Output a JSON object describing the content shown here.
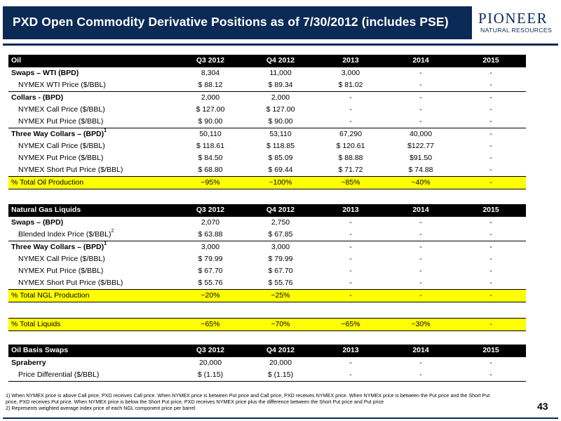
{
  "header": {
    "title": "PXD Open Commodity Derivative Positions as of 7/30/2012 (includes PSE)",
    "logo_name": "PIONEER",
    "logo_sub": "NATURAL RESOURCES",
    "colors": {
      "navy": "#0b2a56",
      "highlight": "#ffff00"
    }
  },
  "columns": [
    "Q3 2012",
    "Q4 2012",
    "2013",
    "2014",
    "2015"
  ],
  "oil": {
    "section": "Oil",
    "rows": [
      {
        "label": "Swaps – WTI (BPD)",
        "values": [
          "8,304",
          "11,000",
          "3,000",
          "-",
          "-"
        ]
      },
      {
        "label": "NYMEX WTI Price ($/BBL)",
        "values": [
          "$ 88.12",
          "$ 89.34",
          "$ 81.02",
          "-",
          "-"
        ]
      },
      {
        "label": "Collars - (BPD)",
        "values": [
          "2,000",
          "2,000",
          "-",
          "-",
          "-"
        ]
      },
      {
        "label": "NYMEX Call Price ($/BBL)",
        "values": [
          "$ 127.00",
          "$ 127.00",
          "-",
          "-",
          "-"
        ]
      },
      {
        "label": "NYMEX Put Price ($/BBL)",
        "values": [
          "$ 90.00",
          "$ 90.00",
          "-",
          "-",
          "-"
        ]
      },
      {
        "label": "Three Way Collars – (BPD)",
        "sup": "1",
        "values": [
          "50,110",
          "53,110",
          "67,290",
          "40,000",
          "-"
        ]
      },
      {
        "label": "NYMEX Call Price ($/BBL)",
        "values": [
          "$ 118.61",
          "$ 118.85",
          "$ 120.61",
          "$122.77",
          "-"
        ]
      },
      {
        "label": "NYMEX Put Price ($/BBL)",
        "values": [
          "$ 84.50",
          "$ 85.09",
          "$ 88.88",
          "$91.50",
          "-"
        ]
      },
      {
        "label": "NYMEX Short Put Price ($/BBL)",
        "values": [
          "$ 68.80",
          "$ 69.44",
          "$ 71.72",
          "$ 74.88",
          "-"
        ]
      }
    ],
    "total": {
      "label": "% Total Oil Production",
      "values": [
        "~95%",
        "~100%",
        "~85%",
        "~40%",
        "-"
      ]
    }
  },
  "ngl": {
    "section": "Natural Gas Liquids",
    "rows": [
      {
        "label": "Swaps – (BPD)",
        "values": [
          "2,070",
          "2,750",
          "-",
          "-",
          "-"
        ]
      },
      {
        "label": "Blended Index Price ($/BBL)",
        "sup": "2",
        "values": [
          "$ 63.88",
          "$ 67.85",
          "-",
          "-",
          "-"
        ]
      },
      {
        "label": "Three Way Collars – (BPD)",
        "sup": "1",
        "values": [
          "3,000",
          "3,000",
          "-",
          "-",
          "-"
        ]
      },
      {
        "label": "NYMEX Call Price ($/BBL)",
        "values": [
          "$ 79.99",
          "$ 79.99",
          "-",
          "-",
          "-"
        ]
      },
      {
        "label": "NYMEX Put Price ($/BBL)",
        "values": [
          "$ 67.70",
          "$ 67.70",
          "-",
          "-",
          "-"
        ]
      },
      {
        "label": "NYMEX Short Put Price ($/BBL)",
        "values": [
          "$ 55.76",
          "$ 55.76",
          "-",
          "-",
          "-"
        ]
      }
    ],
    "total": {
      "label": "% Total NGL Production",
      "values": [
        "~20%",
        "~25%",
        "-",
        "-",
        "-"
      ]
    }
  },
  "liquids": {
    "label": "% Total Liquids",
    "values": [
      "~65%",
      "~70%",
      "~65%",
      "~30%",
      "-"
    ]
  },
  "basis": {
    "section": "Oil Basis Swaps",
    "rows": [
      {
        "label": "Spraberry",
        "values": [
          "20,000",
          "20,000",
          "-",
          "-",
          "-"
        ]
      },
      {
        "label": "Price Differential ($/BBL)",
        "values": [
          "$ (1.15)",
          "$ (1.15)",
          "-",
          "-",
          "-"
        ]
      }
    ]
  },
  "footnotes": [
    "1)  When NYMEX price is above Call price, PXD receives Call price.  When NYMEX price is between Put price and Call price, PXD receives NYMEX price.  When NYMEX price is between the Put price and the Short Put",
    "     price, PXD receives Put price.  When NYMEX price is below the Short Put price, PXD receives NYMEX price plus the difference between the Short Put price and Put price",
    "2)  Represents weighted average index price of each NGL component price per barrel"
  ],
  "page_number": "43"
}
